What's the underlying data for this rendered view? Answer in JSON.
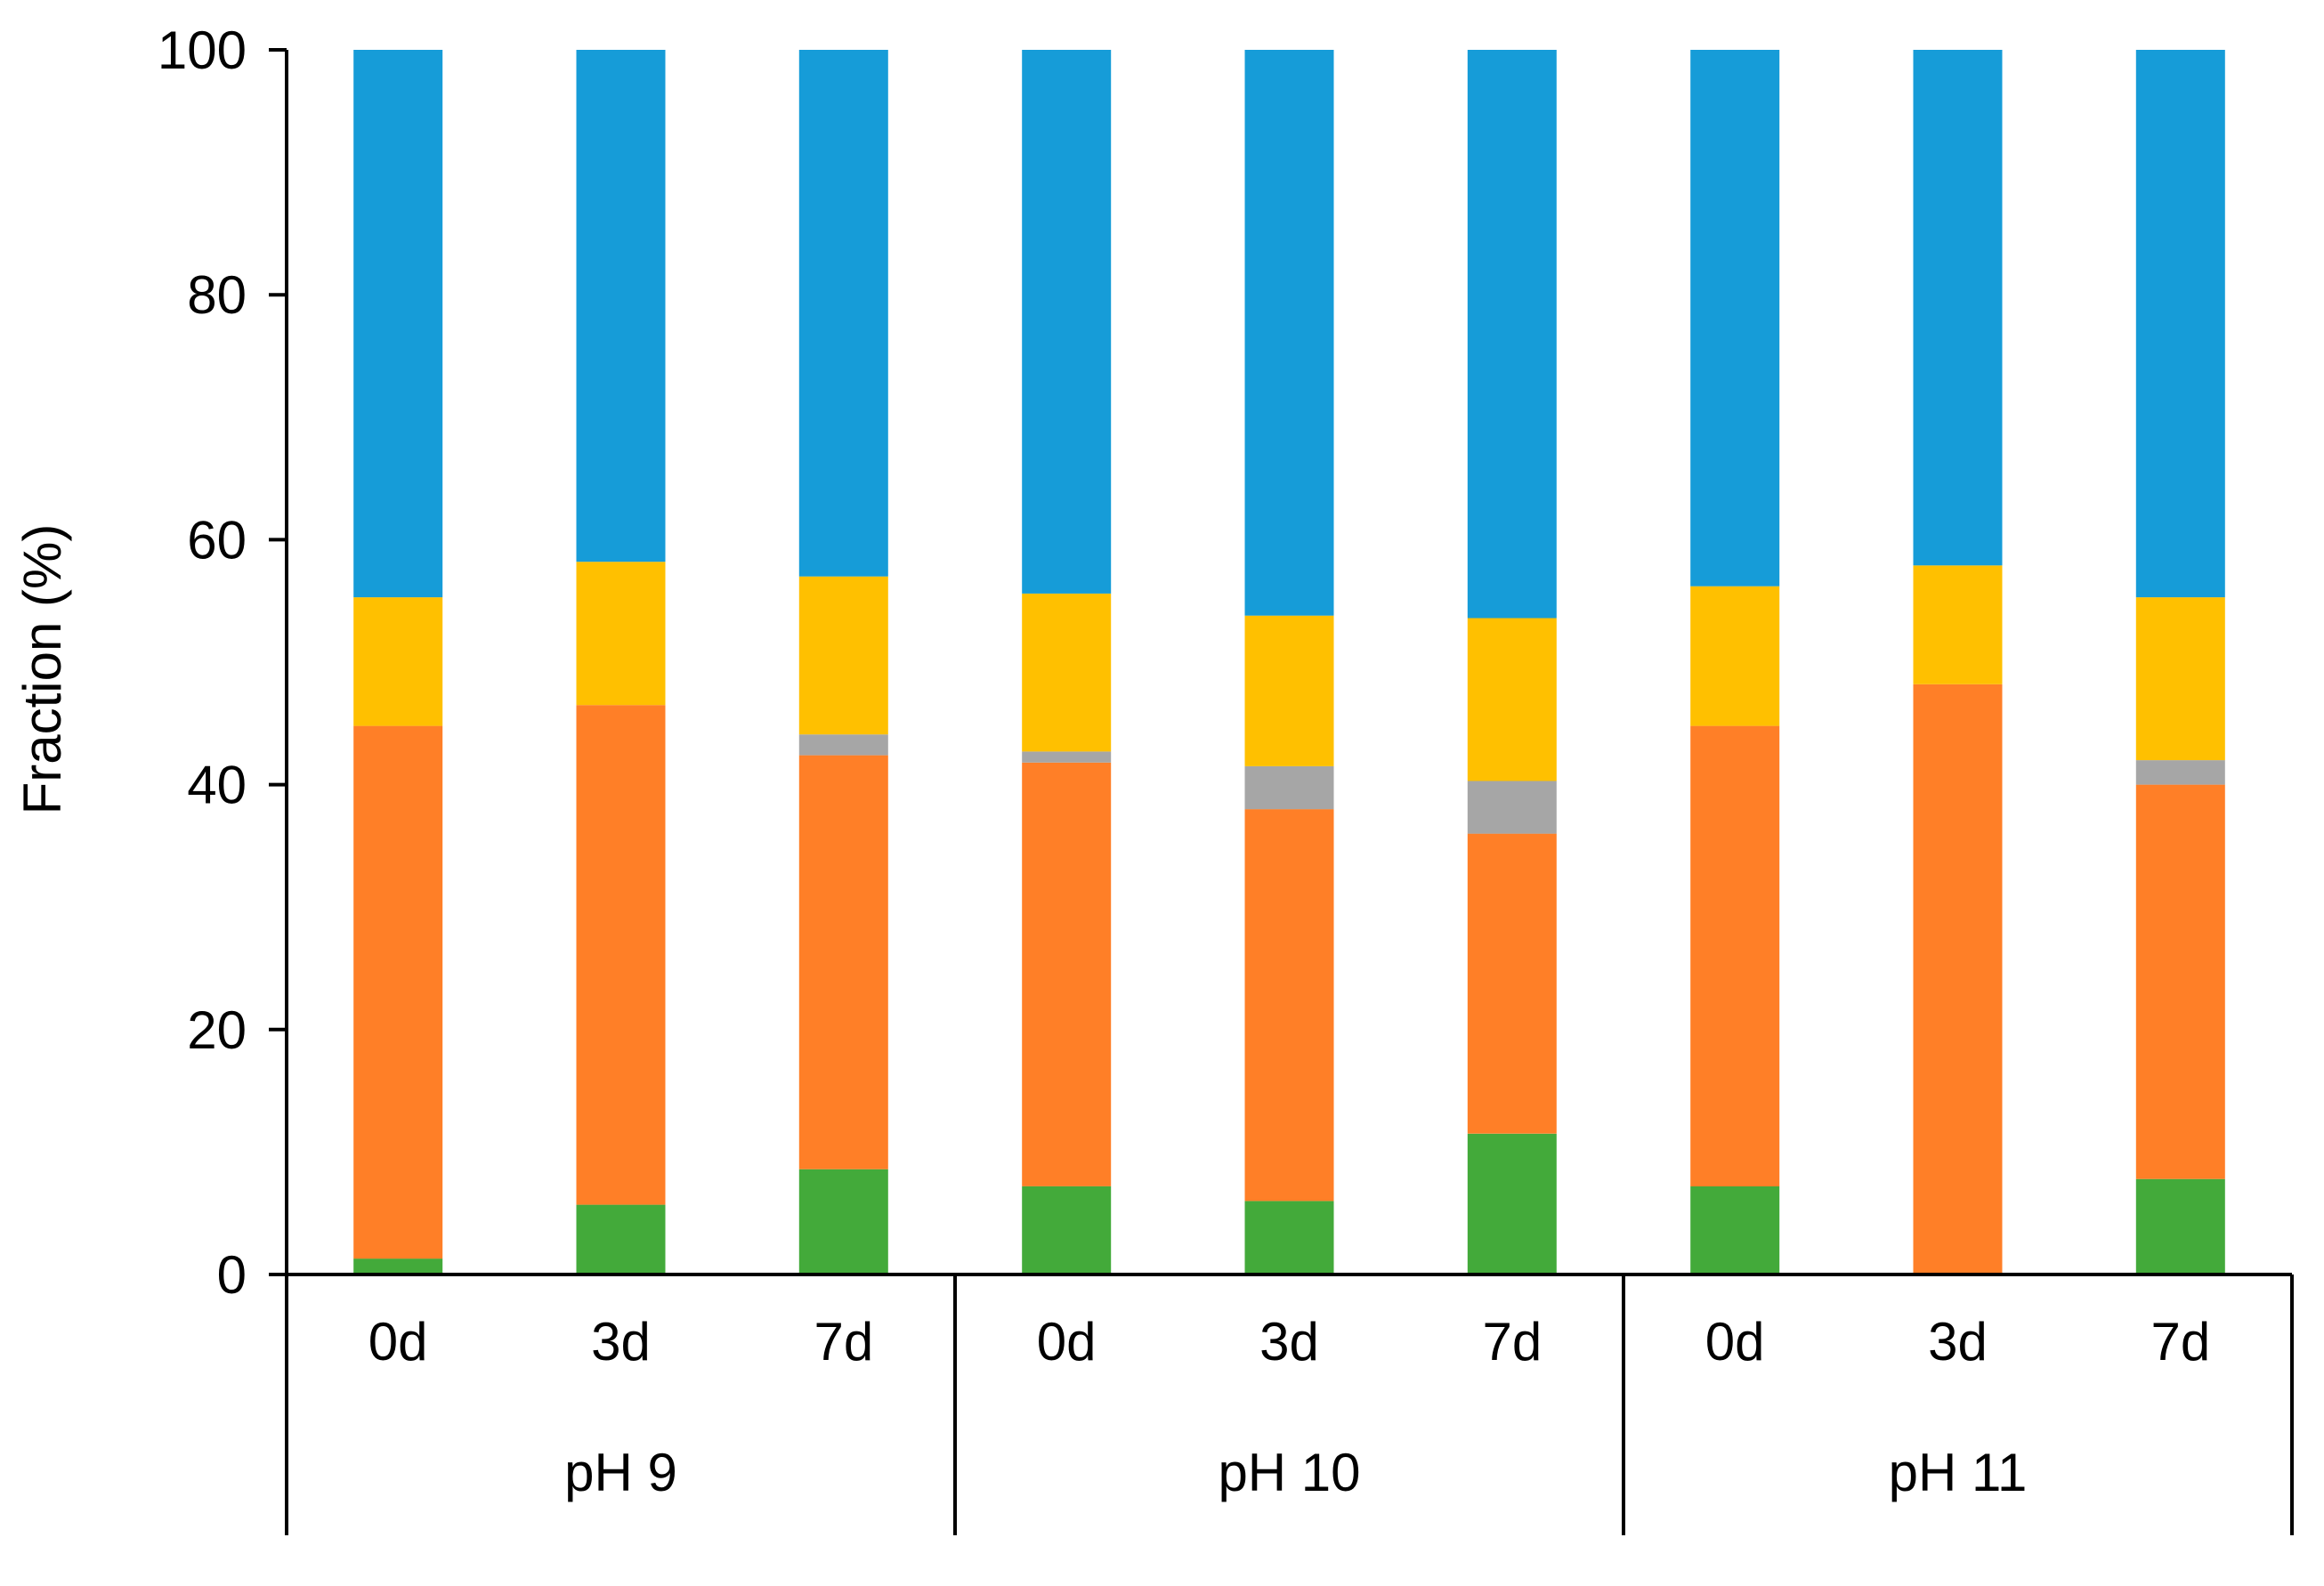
{
  "chart_data": {
    "type": "bar",
    "stacked": true,
    "title": "",
    "xlabel": "",
    "ylabel": "Fraction (%)",
    "ylim": [
      0,
      100
    ],
    "yticks": [
      0,
      20,
      40,
      60,
      80,
      100
    ],
    "grid": false,
    "legend": null,
    "groups": [
      {
        "label": "pH 9",
        "categories": [
          "0d",
          "3d",
          "7d"
        ]
      },
      {
        "label": "pH 10",
        "categories": [
          "0d",
          "3d",
          "7d"
        ]
      },
      {
        "label": "pH 11",
        "categories": [
          "0d",
          "3d",
          "7d"
        ]
      }
    ],
    "series": [
      {
        "name": "green",
        "color": "#43AA3A",
        "values": [
          1.3,
          5.7,
          8.6,
          7.2,
          6.0,
          11.5,
          7.2,
          0.0,
          7.8
        ]
      },
      {
        "name": "orange",
        "color": "#FF7F27",
        "values": [
          43.5,
          40.8,
          33.8,
          34.6,
          32.0,
          24.5,
          37.6,
          48.2,
          32.2
        ]
      },
      {
        "name": "gray",
        "color": "#A6A6A6",
        "values": [
          0.0,
          0.0,
          1.7,
          0.9,
          3.5,
          4.3,
          0.0,
          0.0,
          2.0
        ]
      },
      {
        "name": "yellow",
        "color": "#FFC000",
        "values": [
          10.5,
          11.7,
          12.9,
          12.9,
          12.3,
          13.3,
          11.4,
          9.7,
          13.3
        ]
      },
      {
        "name": "blue",
        "color": "#169CD8",
        "values": [
          44.7,
          41.8,
          43.0,
          44.4,
          46.2,
          46.4,
          43.8,
          42.1,
          44.7
        ]
      }
    ]
  }
}
